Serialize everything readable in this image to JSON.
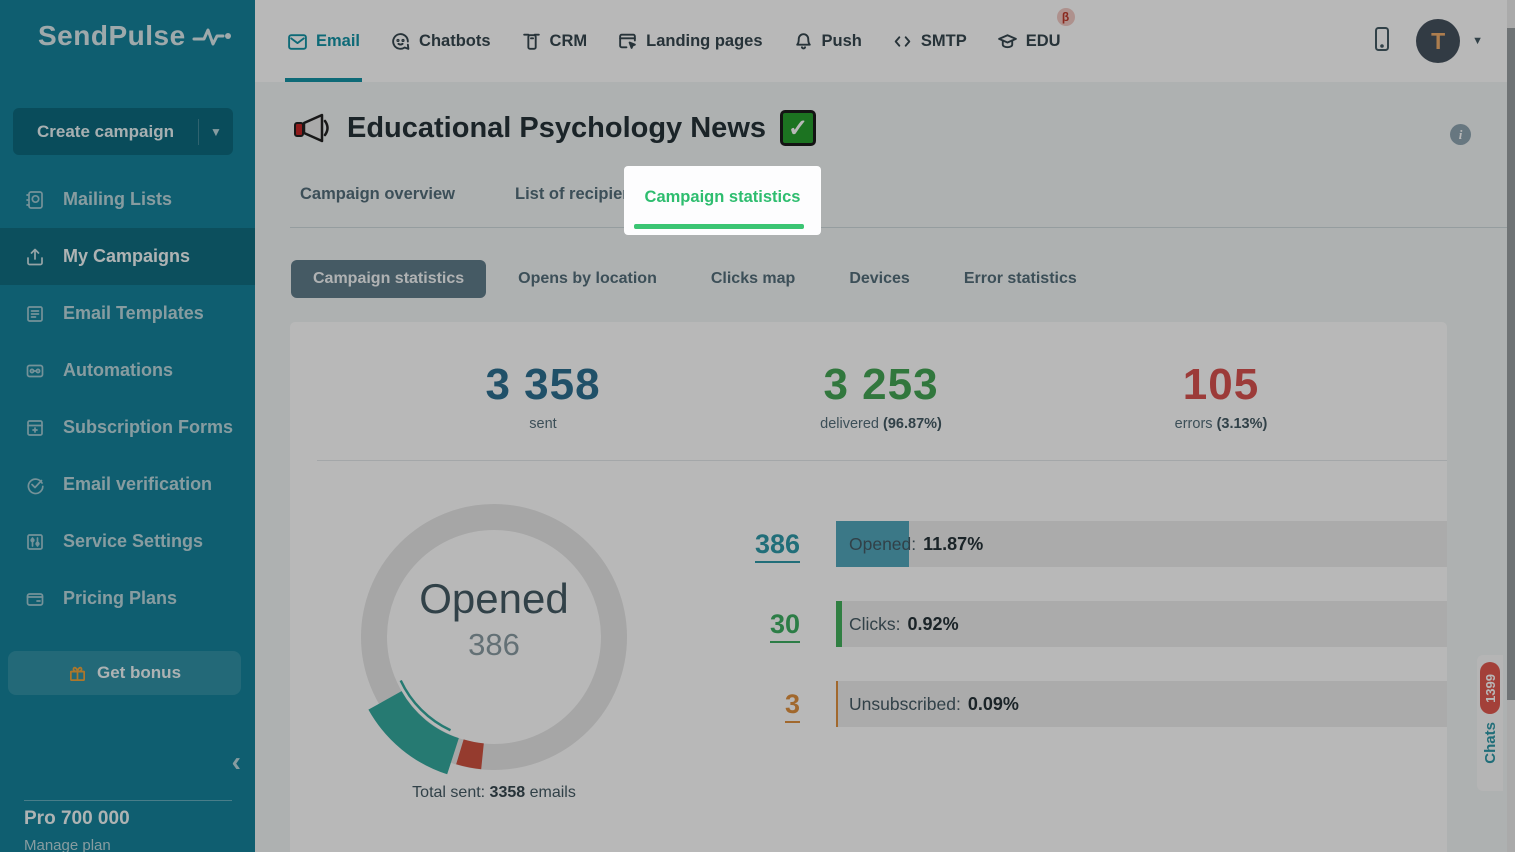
{
  "brand": {
    "logo_text": "SendPulse",
    "sidebar_color": "#15839B"
  },
  "topnav": {
    "items": [
      {
        "label": "Email",
        "active": true
      },
      {
        "label": "Chatbots",
        "active": false
      },
      {
        "label": "CRM",
        "active": false
      },
      {
        "label": "Landing pages",
        "active": false
      },
      {
        "label": "Push",
        "active": false
      },
      {
        "label": "SMTP",
        "active": false
      },
      {
        "label": "EDU",
        "active": false,
        "badge": "β"
      }
    ],
    "active_color": "#1493a6",
    "avatar_letter": "T"
  },
  "sidebar": {
    "create_campaign_label": "Create campaign",
    "items": [
      {
        "label": "Mailing Lists",
        "active": false
      },
      {
        "label": "My Campaigns",
        "active": true
      },
      {
        "label": "Email Templates",
        "active": false
      },
      {
        "label": "Automations",
        "active": false
      },
      {
        "label": "Subscription Forms",
        "active": false
      },
      {
        "label": "Email verification",
        "active": false
      },
      {
        "label": "Service Settings",
        "active": false
      },
      {
        "label": "Pricing Plans",
        "active": false
      }
    ],
    "get_bonus_label": "Get bonus",
    "plan_name": "Pro 700 000",
    "manage_plan_label": "Manage plan"
  },
  "header": {
    "title": "Educational Psychology News",
    "check_glyph": "✓"
  },
  "tabs": {
    "items": [
      {
        "label": "Campaign overview",
        "active": false
      },
      {
        "label": "List of recipients",
        "active": false
      },
      {
        "label": "Campaign statistics",
        "active": true
      }
    ],
    "active_color": "#2ebd6f"
  },
  "subtabs": {
    "items": [
      {
        "label": "Campaign statistics",
        "active": true
      },
      {
        "label": "Opens by location",
        "active": false
      },
      {
        "label": "Clicks map",
        "active": false
      },
      {
        "label": "Devices",
        "active": false
      },
      {
        "label": "Error statistics",
        "active": false
      }
    ]
  },
  "stats": {
    "sent": {
      "value": "3 358",
      "label": "sent",
      "color": "#2d7091"
    },
    "delivered": {
      "value": "3 253",
      "label": "delivered",
      "percent": "(96.87%)",
      "color": "#44a555"
    },
    "errors": {
      "value": "105",
      "label": "errors",
      "percent": "(3.13%)",
      "color": "#d9534f"
    }
  },
  "donut": {
    "center_label": "Opened",
    "center_value": "386",
    "caption_prefix": "Total sent: ",
    "caption_value": "3358",
    "caption_suffix": " emails"
  },
  "metrics": {
    "rows": [
      {
        "count": "386",
        "label": "Opened:",
        "percent": "11.87%",
        "pct": 11.87,
        "color": "#53a7bc"
      },
      {
        "count": "30",
        "label": "Clicks:",
        "percent": "0.92%",
        "pct": 0.92,
        "color": "#43b05c"
      },
      {
        "count": "3",
        "label": "Unsubscribed:",
        "percent": "0.09%",
        "pct": 0.09,
        "color": "#e0913f"
      }
    ]
  },
  "chats": {
    "label": "Chats",
    "badge": "1399"
  },
  "chart_data": [
    {
      "type": "pie",
      "title": "Opened",
      "labels": [
        "Opened",
        "Errors",
        "Remaining"
      ],
      "values": [
        386,
        105,
        2867
      ],
      "total": 3358,
      "center_label": "Opened",
      "center_value": 386,
      "caption": "Total sent: 3358 emails",
      "colors": {
        "opened": "#35a99e",
        "errors": "#cf5240",
        "rest": "#e6e6e6"
      },
      "legend": "none"
    },
    {
      "type": "bar",
      "orientation": "horizontal",
      "categories": [
        "Opened",
        "Clicks",
        "Unsubscribed"
      ],
      "values": [
        11.87,
        0.92,
        0.09
      ],
      "counts": [
        386,
        30,
        3
      ],
      "unit": "%",
      "xlim": [
        0,
        100
      ],
      "colors": [
        "#53a7bc",
        "#43b05c",
        "#e0913f"
      ]
    }
  ]
}
